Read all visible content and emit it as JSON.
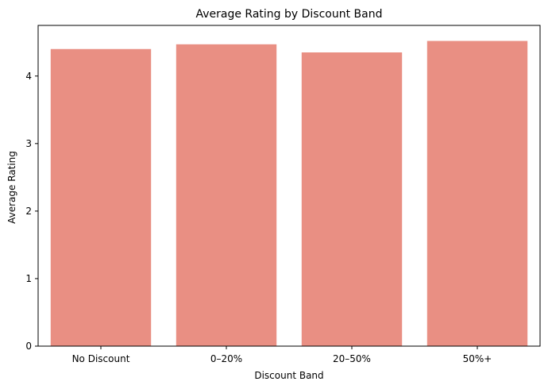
{
  "chart_data": {
    "type": "bar",
    "title": "Average Rating by Discount Band",
    "xlabel": "Discount Band",
    "ylabel": "Average Rating",
    "categories": [
      "No Discount",
      "0–20%",
      "20–50%",
      "50%+"
    ],
    "values": [
      4.4,
      4.47,
      4.35,
      4.52
    ],
    "ylim": [
      0,
      4.75
    ],
    "yticks": [
      "0",
      "1",
      "2",
      "3",
      "4"
    ],
    "bar_color": "#e98f83",
    "grid": false
  }
}
